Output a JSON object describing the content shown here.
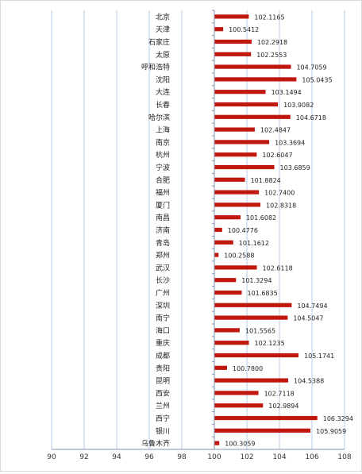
{
  "chart_data": {
    "type": "bar",
    "orientation": "horizontal",
    "categories": [
      "北京",
      "天津",
      "石家庄",
      "太原",
      "呼和浩特",
      "沈阳",
      "大连",
      "长春",
      "哈尔滨",
      "上海",
      "南京",
      "杭州",
      "宁波",
      "合肥",
      "福州",
      "厦门",
      "南昌",
      "济南",
      "青岛",
      "郑州",
      "武汉",
      "长沙",
      "广州",
      "深圳",
      "南宁",
      "海口",
      "重庆",
      "成都",
      "贵阳",
      "昆明",
      "西安",
      "兰州",
      "西宁",
      "银川",
      "乌鲁木齐"
    ],
    "values": [
      102.1165,
      100.5412,
      102.2918,
      102.2553,
      104.7059,
      105.0435,
      103.1494,
      103.9082,
      104.6718,
      102.4847,
      103.3694,
      102.6047,
      103.6859,
      101.8824,
      102.74,
      102.8318,
      101.6082,
      100.4776,
      101.1612,
      100.2588,
      102.6118,
      101.3294,
      101.6835,
      104.7494,
      104.5047,
      101.5565,
      102.1235,
      105.1741,
      100.78,
      104.5388,
      102.7118,
      102.9894,
      106.3294,
      105.9059,
      100.3059
    ],
    "value_labels": [
      "102.1165",
      "100.5412",
      "102.2918",
      "102.2553",
      "104.7059",
      "105.0435",
      "103.1494",
      "103.9082",
      "104.6718",
      "102.4847",
      "103.3694",
      "102.6047",
      "103.6859",
      "101.8824",
      "102.7400",
      "102.8318",
      "101.6082",
      "100.4776",
      "101.1612",
      "100.2588",
      "102.6118",
      "101.3294",
      "101.6835",
      "104.7494",
      "104.5047",
      "101.5565",
      "102.1235",
      "105.1741",
      "100.7800",
      "104.5388",
      "102.7118",
      "102.9894",
      "106.3294",
      "105.9059",
      "100.3059"
    ],
    "x_ticks": [
      "90",
      "92",
      "94",
      "96",
      "98",
      "100",
      "102",
      "104",
      "106",
      "108"
    ],
    "xlim": [
      90,
      108
    ],
    "baseline": 100,
    "grid": true,
    "title": "",
    "xlabel": "",
    "ylabel": "",
    "bar_color": "#c0170f",
    "grid_color": "#b8cce4"
  }
}
